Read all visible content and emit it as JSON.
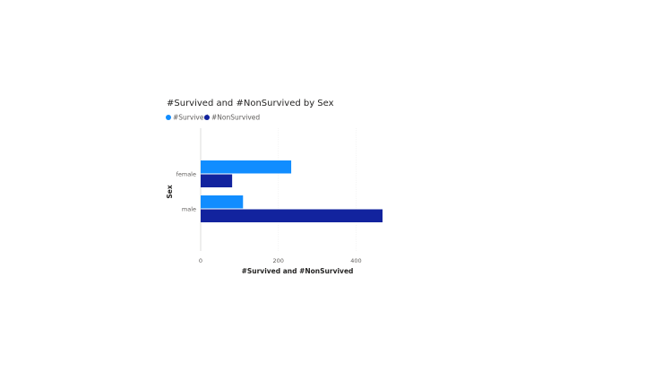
{
  "chart_data": {
    "type": "bar",
    "orientation": "horizontal",
    "title": "#Survived and #NonSurvived by Sex",
    "xlabel": "#Survived and #NonSurvived",
    "ylabel": "Sex",
    "categories": [
      "female",
      "male"
    ],
    "series": [
      {
        "name": "#Survived",
        "color": "#118DFF",
        "values": [
          233,
          109
        ]
      },
      {
        "name": "#NonSurvived",
        "color": "#12239E",
        "values": [
          81,
          468
        ]
      }
    ],
    "xlim": [
      0,
      468
    ],
    "x_ticks": [
      0,
      200,
      400
    ],
    "grid": true,
    "legend_position": "top-left"
  }
}
